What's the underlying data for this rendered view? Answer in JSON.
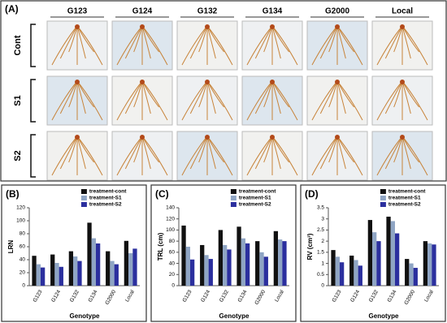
{
  "panel_a": {
    "label": "(A)",
    "genotypes": [
      "G123",
      "G124",
      "G132",
      "G134",
      "G2000",
      "Local"
    ],
    "treatments": [
      "Cont",
      "S1",
      "S2"
    ]
  },
  "chart_data": [
    {
      "type": "bar",
      "panel_label": "(B)",
      "ylabel": "LRN",
      "xlabel": "Genotype",
      "categories": [
        "G123",
        "G124",
        "G132",
        "G134",
        "G2000",
        "Local"
      ],
      "series": [
        {
          "name": "treatment-cont",
          "color": "#111111",
          "values": [
            46,
            48,
            53,
            97,
            53,
            69
          ]
        },
        {
          "name": "treatment-S1",
          "color": "#8fa5c4",
          "values": [
            33,
            35,
            45,
            73,
            38,
            50
          ]
        },
        {
          "name": "treatment-S2",
          "color": "#2b2f9e",
          "values": [
            28,
            29,
            38,
            65,
            33,
            57
          ]
        }
      ],
      "ylim": [
        0,
        120
      ],
      "yticks": [
        0,
        20,
        40,
        60,
        80,
        100,
        120
      ],
      "legend": "top"
    },
    {
      "type": "bar",
      "panel_label": "(C)",
      "ylabel": "TRL (cm)",
      "xlabel": "Genotype",
      "categories": [
        "G123",
        "G124",
        "G132",
        "G134",
        "G2000",
        "Local"
      ],
      "series": [
        {
          "name": "treatment-cont",
          "color": "#111111",
          "values": [
            108,
            73,
            100,
            106,
            80,
            98
          ]
        },
        {
          "name": "treatment-S1",
          "color": "#8fa5c4",
          "values": [
            70,
            55,
            73,
            85,
            60,
            83
          ]
        },
        {
          "name": "treatment-S2",
          "color": "#2b2f9e",
          "values": [
            47,
            48,
            65,
            76,
            52,
            80
          ]
        }
      ],
      "ylim": [
        0,
        140
      ],
      "yticks": [
        0,
        20,
        40,
        60,
        80,
        100,
        120,
        140
      ],
      "legend": "top"
    },
    {
      "type": "bar",
      "panel_label": "(D)",
      "ylabel": "RV (cm³)",
      "xlabel": "Genotype",
      "categories": [
        "G123",
        "G124",
        "G132",
        "G134",
        "G2000",
        "Local"
      ],
      "series": [
        {
          "name": "treatment-cont",
          "color": "#111111",
          "values": [
            1.6,
            1.35,
            2.95,
            3.1,
            1.2,
            2.0
          ]
        },
        {
          "name": "treatment-S1",
          "color": "#8fa5c4",
          "values": [
            1.3,
            1.15,
            2.4,
            2.9,
            1.0,
            1.9
          ]
        },
        {
          "name": "treatment-S2",
          "color": "#2b2f9e",
          "values": [
            1.05,
            0.9,
            2.0,
            2.35,
            0.8,
            1.85
          ]
        }
      ],
      "ylim": [
        0,
        3.5
      ],
      "yticks": [
        0,
        0.5,
        1,
        1.5,
        2,
        2.5,
        3,
        3.5
      ],
      "legend": "top"
    }
  ]
}
